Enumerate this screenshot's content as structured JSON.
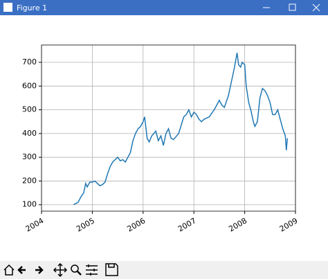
{
  "window": {
    "title": "Figure 1"
  },
  "chart_data": {
    "type": "line",
    "x": [
      2004.63,
      2004.67,
      2004.72,
      2004.78,
      2004.83,
      2004.87,
      2004.9,
      2004.95,
      2005.0,
      2005.05,
      2005.1,
      2005.15,
      2005.2,
      2005.25,
      2005.3,
      2005.35,
      2005.4,
      2005.45,
      2005.5,
      2005.55,
      2005.6,
      2005.65,
      2005.7,
      2005.75,
      2005.8,
      2005.85,
      2005.9,
      2005.95,
      2006.0,
      2006.03,
      2006.08,
      2006.12,
      2006.17,
      2006.25,
      2006.3,
      2006.35,
      2006.4,
      2006.45,
      2006.5,
      2006.55,
      2006.6,
      2006.7,
      2006.8,
      2006.85,
      2006.9,
      2006.95,
      2007.0,
      2007.05,
      2007.1,
      2007.15,
      2007.2,
      2007.3,
      2007.4,
      2007.45,
      2007.5,
      2007.55,
      2007.6,
      2007.68,
      2007.75,
      2007.8,
      2007.85,
      2007.88,
      2007.92,
      2007.95,
      2008.0,
      2008.03,
      2008.08,
      2008.12,
      2008.17,
      2008.2,
      2008.25,
      2008.3,
      2008.35,
      2008.4,
      2008.45,
      2008.5,
      2008.55,
      2008.6,
      2008.65,
      2008.7,
      2008.75,
      2008.8,
      2008.82,
      2008.84
    ],
    "series": [
      {
        "color": "#1f77b4",
        "values": [
          100,
          105,
          110,
          135,
          150,
          190,
          175,
          195,
          195,
          200,
          190,
          180,
          185,
          195,
          230,
          260,
          280,
          290,
          300,
          285,
          290,
          280,
          300,
          320,
          370,
          400,
          420,
          430,
          450,
          470,
          380,
          365,
          390,
          410,
          370,
          390,
          350,
          400,
          420,
          380,
          375,
          400,
          470,
          480,
          500,
          470,
          490,
          480,
          460,
          450,
          460,
          470,
          500,
          520,
          540,
          520,
          510,
          560,
          630,
          680,
          740,
          690,
          680,
          700,
          690,
          600,
          530,
          500,
          450,
          430,
          450,
          550,
          590,
          580,
          560,
          530,
          480,
          480,
          500,
          460,
          420,
          390,
          330,
          380
        ]
      }
    ],
    "xlim": [
      2004,
      2009
    ],
    "xticks": [
      2004,
      2005,
      2006,
      2007,
      2008,
      2009
    ],
    "ylim": [
      73,
      773
    ],
    "yticks": [
      100,
      200,
      300,
      400,
      500,
      600,
      700
    ],
    "grid": true
  }
}
